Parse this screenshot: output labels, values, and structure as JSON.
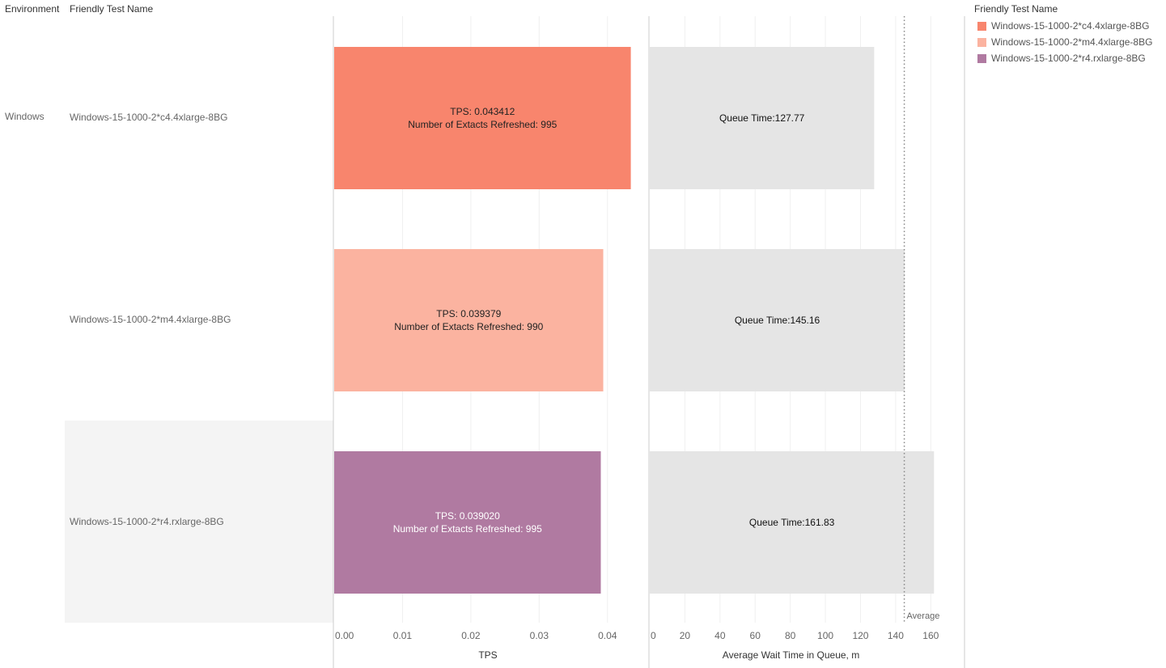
{
  "headers": {
    "environment": "Environment",
    "friendly_test_name": "Friendly Test Name"
  },
  "environment_value": "Windows",
  "legend": {
    "title": "Friendly Test Name",
    "items": [
      {
        "label": "Windows-15-1000-2*c4.4xlarge-8BG",
        "color": "#f8856d"
      },
      {
        "label": "Windows-15-1000-2*m4.4xlarge-8BG",
        "color": "#fbb3a0"
      },
      {
        "label": "Windows-15-1000-2*r4.rxlarge-8BG",
        "color": "#b07aa1"
      }
    ]
  },
  "chart_data": {
    "type": "bar",
    "orientation": "horizontal",
    "categories": [
      "Windows-15-1000-2*c4.4xlarge-8BG",
      "Windows-15-1000-2*m4.4xlarge-8BG",
      "Windows-15-1000-2*r4.rxlarge-8BG"
    ],
    "panels": [
      {
        "id": "tps",
        "xlabel": "TPS",
        "xlim": [
          0,
          0.045
        ],
        "ticks": [
          0,
          0.01,
          0.02,
          0.03,
          0.04
        ],
        "tick_labels": [
          "0.00",
          "0.01",
          "0.02",
          "0.03",
          "0.04"
        ],
        "values": [
          0.043412,
          0.039379,
          0.03902
        ],
        "colors": [
          "#f8856d",
          "#fbb3a0",
          "#b07aa1"
        ],
        "label_colors": [
          "#222222",
          "#222222",
          "#ffffff"
        ],
        "labels": [
          [
            "TPS: 0.043412",
            "Number of Extacts Refreshed: 995"
          ],
          [
            "TPS: 0.039379",
            "Number of Extacts Refreshed: 990"
          ],
          [
            "TPS: 0.039020",
            "Number of Extacts Refreshed: 995"
          ]
        ],
        "extracts_refreshed": [
          995,
          990,
          995
        ]
      },
      {
        "id": "queue",
        "xlabel": "Average Wait Time in Queue, m",
        "xlim": [
          0,
          170
        ],
        "ticks": [
          0,
          20,
          40,
          60,
          80,
          100,
          120,
          140,
          160
        ],
        "tick_labels": [
          "0",
          "20",
          "40",
          "60",
          "80",
          "100",
          "120",
          "140",
          "160"
        ],
        "values": [
          127.77,
          145.16,
          161.83
        ],
        "colors": [
          "#e5e5e5",
          "#e5e5e5",
          "#e5e5e5"
        ],
        "label_colors": [
          "#111111",
          "#111111",
          "#111111"
        ],
        "labels": [
          [
            "Queue Time:127.77"
          ],
          [
            "Queue Time:145.16"
          ],
          [
            "Queue Time:161.83"
          ]
        ],
        "reference_line": {
          "label": "Average",
          "value": 144.92
        }
      }
    ],
    "grid": true,
    "legend_position": "right"
  }
}
